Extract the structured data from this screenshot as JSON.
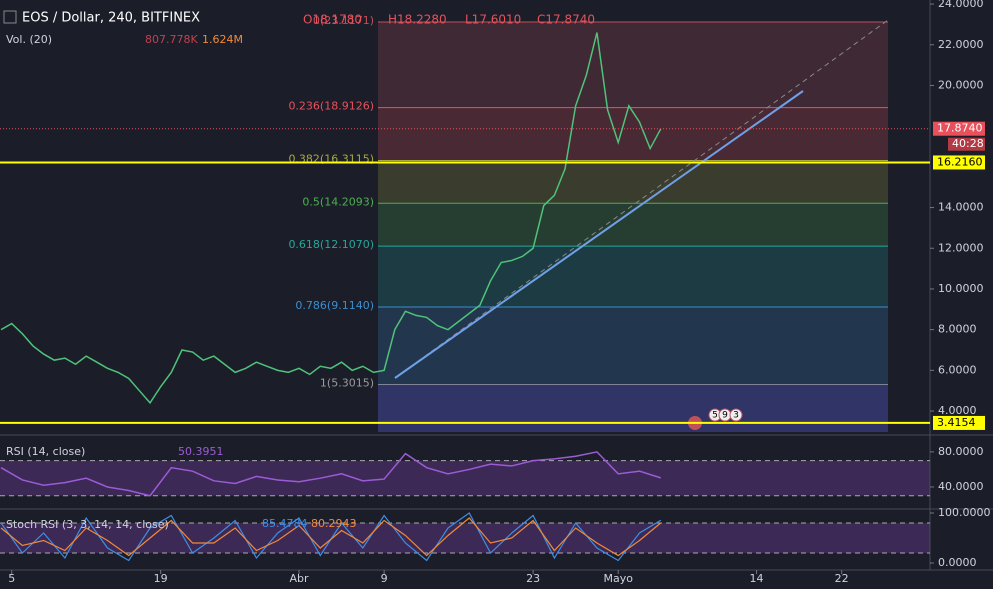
{
  "header": {
    "symbol": "EOS / Dollar, 240, BITFINEX",
    "open": "O18.1780",
    "high": "H18.2280",
    "low": "L17.6010",
    "close": "C17.8740",
    "volume_title": "Vol. (20)",
    "volume_a": "807.778K",
    "volume_b": "1.624M"
  },
  "events": [
    "5",
    "9",
    "3"
  ],
  "chart_data": [
    {
      "type": "line",
      "color": "#4fc37a",
      "x": [
        63,
        64,
        65,
        66,
        67,
        68,
        69,
        70,
        71,
        72,
        73,
        74,
        75,
        76,
        77,
        78,
        79,
        80,
        81,
        82,
        83,
        84,
        85,
        86,
        87,
        88,
        89,
        90,
        91,
        92,
        93,
        94,
        95,
        96,
        97,
        98,
        99,
        100,
        101,
        102,
        103,
        104,
        105,
        106,
        107,
        108,
        109,
        110,
        111,
        112,
        113,
        114,
        115,
        116,
        117,
        118,
        119,
        120,
        121,
        122,
        123,
        124,
        125
      ],
      "values": [
        8.0,
        8.3,
        7.8,
        7.2,
        6.8,
        6.5,
        6.6,
        6.3,
        6.7,
        6.4,
        6.1,
        5.9,
        5.6,
        5.0,
        4.4,
        5.2,
        5.9,
        7.0,
        6.9,
        6.5,
        6.7,
        6.3,
        5.9,
        6.1,
        6.4,
        6.2,
        6.0,
        5.9,
        6.1,
        5.8,
        6.2,
        6.1,
        6.4,
        6.0,
        6.2,
        5.9,
        6.0,
        8.0,
        8.9,
        8.7,
        8.6,
        8.2,
        8.0,
        8.4,
        8.8,
        9.2,
        10.4,
        11.3,
        11.4,
        11.6,
        12.0,
        14.1,
        14.6,
        15.9,
        19.0,
        20.5,
        22.6,
        18.8,
        17.2,
        19.0,
        18.2,
        16.9,
        17.87
      ],
      "xlim": [
        62.9,
        150.3
      ],
      "xticks": [
        {
          "value": 64,
          "label": "5"
        },
        {
          "value": 78,
          "label": "19"
        },
        {
          "value": 91,
          "label": "Abr"
        },
        {
          "value": 99,
          "label": "9"
        },
        {
          "value": 113,
          "label": "23"
        },
        {
          "value": 121,
          "label": "Mayo"
        },
        {
          "value": 134,
          "label": "14"
        },
        {
          "value": 142,
          "label": "22"
        }
      ],
      "ylim": [
        2.97,
        24.2
      ],
      "yticks": [
        {
          "value": 4,
          "label": "4.0000"
        },
        {
          "value": 6,
          "label": "6.0000"
        },
        {
          "value": 8,
          "label": "8.0000"
        },
        {
          "value": 10,
          "label": "10.0000"
        },
        {
          "value": 12,
          "label": "12.0000"
        },
        {
          "value": 14,
          "label": "14.0000"
        },
        {
          "value": 20,
          "label": "20.0000"
        },
        {
          "value": 22,
          "label": "22.0000"
        },
        {
          "value": 24,
          "label": "24.0000"
        }
      ],
      "fib_levels": [
        {
          "value": 23.1171,
          "label": "0(23.1171)",
          "color": "#c0505a"
        },
        {
          "value": 18.9126,
          "label": "0.236(18.9126)",
          "color": "#e8505b"
        },
        {
          "value": 16.3115,
          "label": "0.382(16.3115)",
          "color": "#a8a840"
        },
        {
          "value": 14.2093,
          "label": "0.5(14.2093)",
          "color": "#4caf50"
        },
        {
          "value": 12.107,
          "label": "0.618(12.1070)",
          "color": "#26a69a"
        },
        {
          "value": 9.114,
          "label": "0.786(9.1140)",
          "color": "#3b8ed0"
        },
        {
          "value": 5.3015,
          "label": "1(5.3015)",
          "color": "#9a9a9a"
        }
      ],
      "fib_bottom_color": "#2a2f8a",
      "hlines": [
        {
          "value": 16.216,
          "label": "16.2160",
          "color": "#ffff00"
        },
        {
          "value": 3.4154,
          "label": "3.4154",
          "color": "#ffff00"
        }
      ],
      "last_price": {
        "value": 17.874,
        "label": "17.8740",
        "countdown": "40:28",
        "color": "#e8505b"
      }
    },
    {
      "type": "line",
      "title": "RSI (14, close)",
      "value_text": "50.3951",
      "color": "#9c5bd6",
      "x": [
        63,
        65,
        67,
        69,
        71,
        73,
        75,
        77,
        79,
        81,
        83,
        85,
        87,
        89,
        91,
        93,
        95,
        97,
        99,
        101,
        103,
        105,
        107,
        109,
        111,
        113,
        115,
        117,
        119,
        121,
        123,
        125
      ],
      "values": [
        62,
        48,
        42,
        45,
        50,
        40,
        36,
        30,
        62,
        58,
        47,
        44,
        52,
        48,
        46,
        50,
        55,
        47,
        49,
        78,
        62,
        55,
        60,
        66,
        64,
        70,
        72,
        75,
        80,
        55,
        58,
        50.3951
      ],
      "ylim": [
        16,
        97
      ],
      "bands": [
        70,
        30
      ],
      "band_color": "#7b3fa8",
      "yticks": [
        {
          "value": 80,
          "label": "80.0000"
        },
        {
          "value": 40,
          "label": "40.0000"
        }
      ]
    },
    {
      "type": "line",
      "title": "Stoch RSI (3, 3, 14, 14, close)",
      "value_text_k": "85.4784",
      "value_text_d": "80.2943",
      "x": [
        63,
        65,
        67,
        69,
        71,
        73,
        75,
        77,
        79,
        81,
        83,
        85,
        87,
        89,
        91,
        93,
        95,
        97,
        99,
        101,
        103,
        105,
        107,
        109,
        111,
        113,
        115,
        117,
        119,
        121,
        123,
        125
      ],
      "series": [
        {
          "color": "#3d8ee6",
          "values": [
            80,
            20,
            60,
            10,
            90,
            30,
            5,
            70,
            95,
            20,
            50,
            85,
            10,
            60,
            90,
            15,
            80,
            30,
            95,
            40,
            5,
            70,
            100,
            20,
            60,
            95,
            10,
            80,
            30,
            5,
            60,
            85.4784
          ]
        },
        {
          "color": "#f08a3a",
          "values": [
            70,
            35,
            45,
            25,
            70,
            45,
            15,
            50,
            85,
            40,
            40,
            70,
            25,
            45,
            75,
            30,
            65,
            40,
            85,
            55,
            15,
            55,
            90,
            40,
            50,
            85,
            25,
            70,
            40,
            15,
            45,
            80.2943
          ]
        }
      ],
      "ylim": [
        -14,
        106
      ],
      "bands": [
        80,
        20
      ],
      "band_color": "#7b3fa8",
      "yticks": [
        {
          "value": 100,
          "label": "100.0000"
        },
        {
          "value": 0,
          "label": "0.0000"
        }
      ]
    }
  ]
}
